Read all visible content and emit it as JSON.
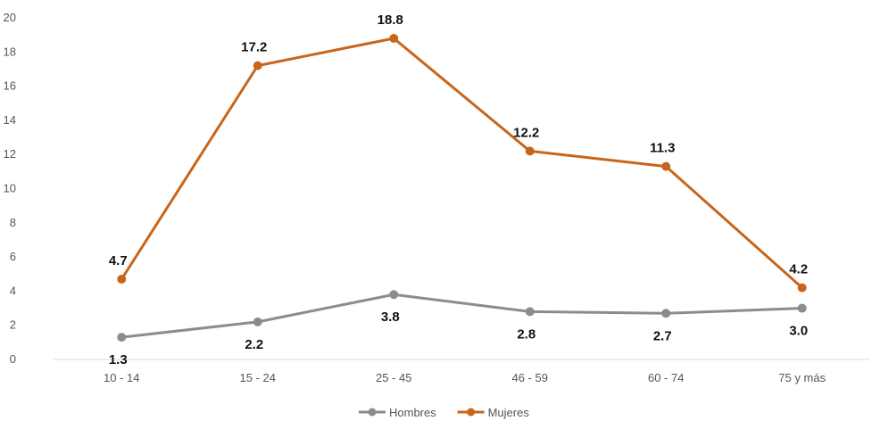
{
  "chart_data": {
    "type": "line",
    "title": "",
    "xlabel": "",
    "ylabel": "",
    "ylim": [
      0,
      20
    ],
    "yticks": [
      "0",
      "2",
      "4",
      "6",
      "8",
      "10",
      "12",
      "14",
      "16",
      "18",
      "20"
    ],
    "grid": false,
    "legend": "bottom-center",
    "categories": [
      "10 - 14",
      "15 - 24",
      "25 - 45",
      "46 - 59",
      "60 - 74",
      "75 y más"
    ],
    "series": [
      {
        "name": "Hombres",
        "color": "#8c8c8c",
        "values": [
          1.3,
          2.2,
          3.8,
          2.8,
          2.7,
          3.0
        ],
        "labels": [
          "1.3",
          "2.2",
          "3.8",
          "2.8",
          "2.7",
          "3.0"
        ],
        "label_position": "below"
      },
      {
        "name": "Mujeres",
        "color": "#c8651b",
        "values": [
          4.7,
          17.2,
          18.8,
          12.2,
          11.3,
          4.2
        ],
        "labels": [
          "4.7",
          "17.2",
          "18.8",
          "12.2",
          "11.3",
          "4.2"
        ],
        "label_position": "above"
      }
    ]
  }
}
